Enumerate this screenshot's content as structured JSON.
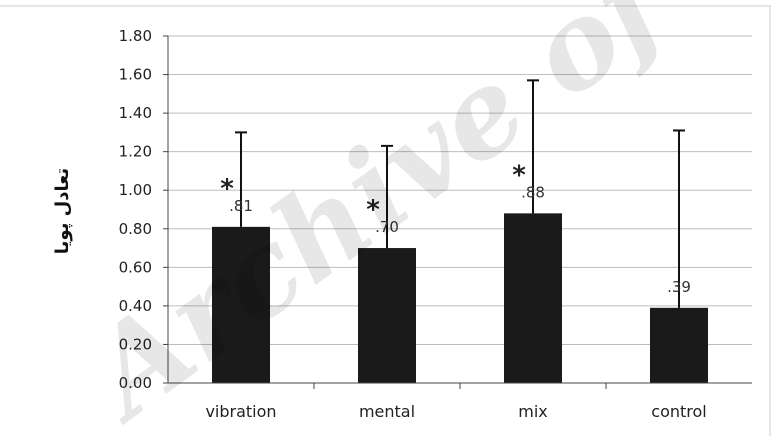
{
  "chart_data": {
    "type": "bar",
    "categories": [
      "vibration",
      "mental",
      "mix",
      "control"
    ],
    "values": [
      0.81,
      0.7,
      0.88,
      0.39
    ],
    "error_upper": [
      1.3,
      1.23,
      1.57,
      1.31
    ],
    "data_labels": [
      ".81",
      ".70",
      ".88",
      ".39"
    ],
    "significance": [
      "*",
      "*",
      "*",
      ""
    ],
    "ylabel": "تعادل پویا",
    "xlabel": "",
    "ylim": [
      0,
      1.8
    ],
    "yticks": [
      "0.00",
      "0.20",
      "0.40",
      "0.60",
      "0.80",
      "1.00",
      "1.20",
      "1.40",
      "1.60",
      "1.80"
    ],
    "grid": true,
    "legend": "none",
    "bar_color": "#1a1a1a",
    "gridline_color": "#bdbdbd"
  },
  "watermark": "Archive of SID"
}
